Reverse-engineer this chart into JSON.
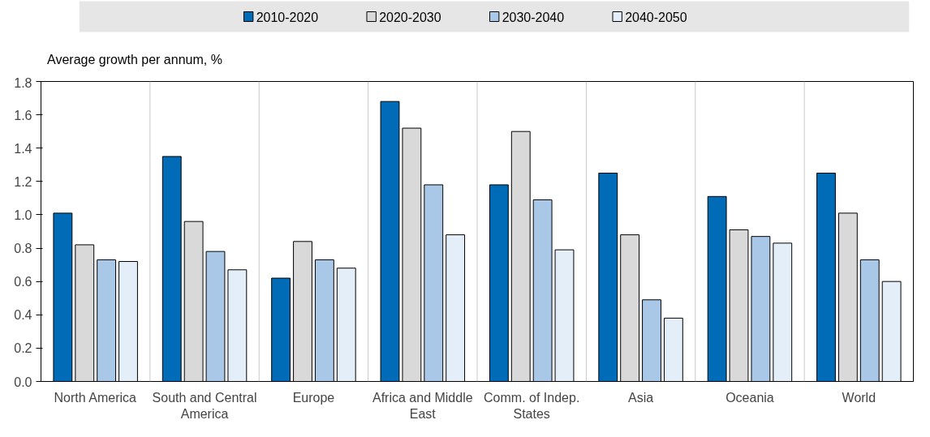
{
  "chart_data": {
    "type": "bar",
    "ylabel": "Average growth per annum, %",
    "categories": [
      "North America",
      "South and Central America",
      "Europe",
      "Africa and Middle East",
      "Comm. of Indep. States",
      "Asia",
      "Oceania",
      "World"
    ],
    "series": [
      {
        "name": "2010-2020",
        "color": "#006bb6",
        "values": [
          1.01,
          1.35,
          0.62,
          1.68,
          1.18,
          1.25,
          1.11,
          1.25
        ]
      },
      {
        "name": "2020-2030",
        "color": "#d9d9d9",
        "values": [
          0.82,
          0.96,
          0.84,
          1.52,
          1.5,
          0.88,
          0.91,
          1.01
        ]
      },
      {
        "name": "2030-2040",
        "color": "#a9c7e6",
        "values": [
          0.73,
          0.78,
          0.73,
          1.18,
          1.09,
          0.49,
          0.87,
          0.73
        ]
      },
      {
        "name": "2040-2050",
        "color": "#e3eef8",
        "values": [
          0.72,
          0.67,
          0.68,
          0.88,
          0.79,
          0.38,
          0.83,
          0.6
        ]
      }
    ],
    "ylim": [
      0,
      1.8
    ],
    "yticks": [
      {
        "value": 0,
        "label": "0.0"
      },
      0.2,
      0.4,
      0.6,
      0.8,
      {
        "value": 1,
        "label": "1.0"
      },
      1.2,
      1.4,
      1.6,
      1.8
    ],
    "grid": "x",
    "legend": "top"
  }
}
